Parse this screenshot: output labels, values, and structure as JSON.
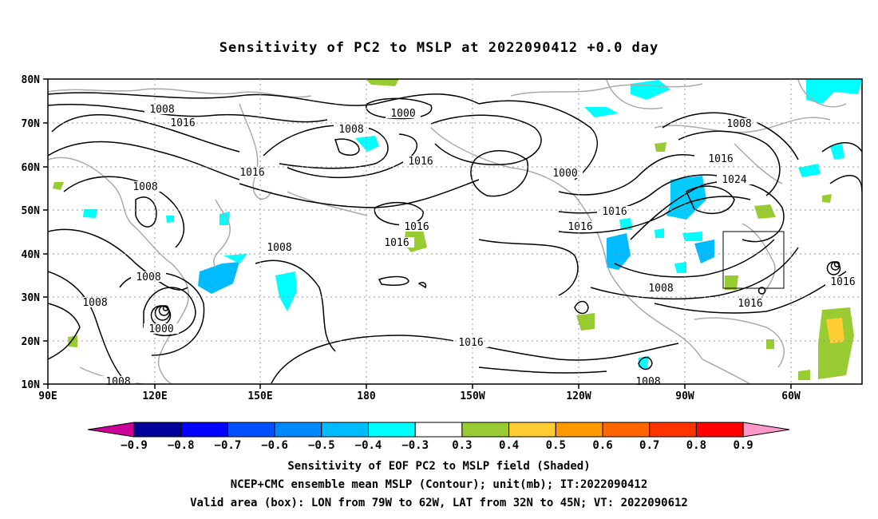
{
  "title": "Sensitivity of PC2 to MSLP at 2022090412 +0.0 day",
  "map": {
    "lat_ticks": [
      "80N",
      "70N",
      "60N",
      "50N",
      "40N",
      "30N",
      "20N",
      "10N"
    ],
    "lon_ticks": [
      "90E",
      "120E",
      "150E",
      "180",
      "150W",
      "120W",
      "90W",
      "60W"
    ],
    "contour_labels": [
      {
        "text": "1008"
      },
      {
        "text": "1016"
      },
      {
        "text": "1008"
      },
      {
        "text": "1000"
      },
      {
        "text": "1008"
      },
      {
        "text": "1016"
      },
      {
        "text": "1016"
      },
      {
        "text": "1008"
      },
      {
        "text": "1008"
      },
      {
        "text": "1016"
      },
      {
        "text": "1016"
      },
      {
        "text": "1000"
      },
      {
        "text": "1008"
      },
      {
        "text": "1016"
      },
      {
        "text": "1016"
      },
      {
        "text": "1024"
      },
      {
        "text": "1008"
      },
      {
        "text": "1016"
      },
      {
        "text": "1008"
      },
      {
        "text": "1016"
      },
      {
        "text": "1016"
      },
      {
        "text": "1000"
      },
      {
        "text": "1016"
      },
      {
        "text": "1016"
      },
      {
        "text": "1008"
      },
      {
        "text": "1008"
      }
    ]
  },
  "colorbar": {
    "labels": [
      "−0.9",
      "−0.8",
      "−0.7",
      "−0.6",
      "−0.5",
      "−0.4",
      "−0.3",
      "0.3",
      "0.4",
      "0.5",
      "0.6",
      "0.7",
      "0.8",
      "0.9"
    ],
    "colors": [
      "#000099",
      "#0000ff",
      "#0050ff",
      "#0088ff",
      "#00bbff",
      "#00ffff",
      "#ffffff",
      "#99cc33",
      "#ffcc33",
      "#ff9900",
      "#ff6600",
      "#ff3300",
      "#ff0000"
    ],
    "low_end_color": "#cc0099",
    "high_end_color": "#ff99cc"
  },
  "captions": [
    "Sensitivity of EOF PC2 to MSLP field (Shaded)",
    "NCEP+CMC ensemble mean MSLP (Contour); unit(mb); IT:2022090412",
    "Valid area (box): LON from 79W to 62W, LAT from 32N to 45N; VT: 2022090612"
  ]
}
